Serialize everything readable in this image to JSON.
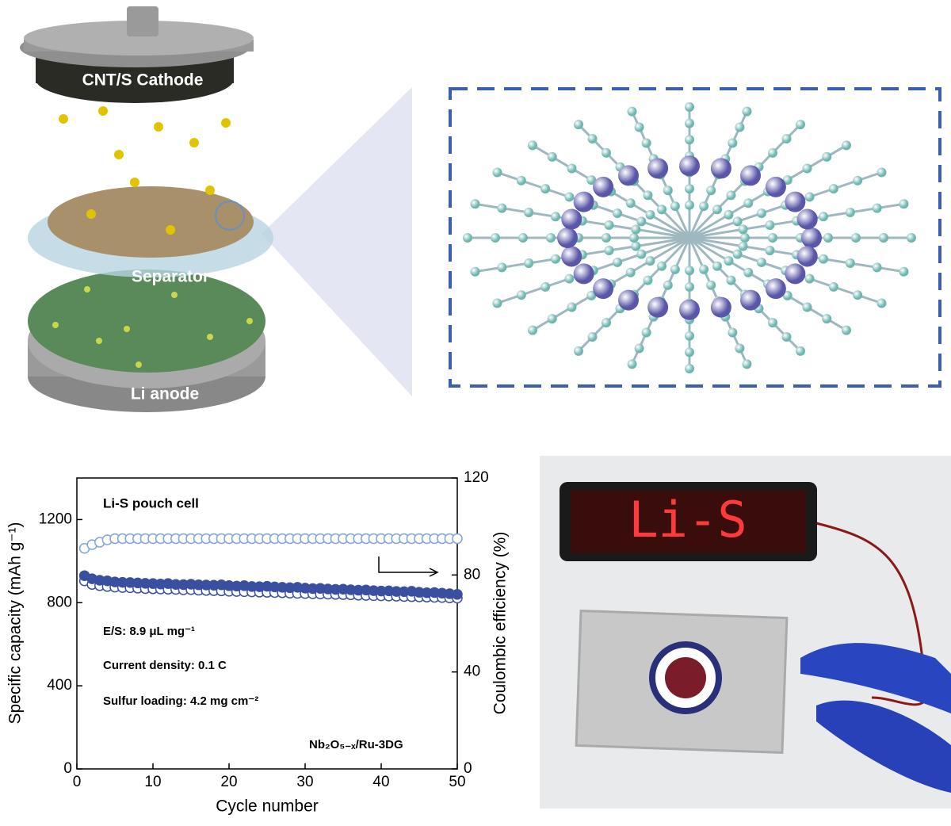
{
  "schematic": {
    "cathode": "CNT/S Cathode",
    "separator": "Separator",
    "anode": "Li anode"
  },
  "photo": {
    "display": "Li-S"
  },
  "chart_data": {
    "type": "scatter",
    "annotations": [
      "Li-S pouch cell",
      "E/S: 8.9 μL mg⁻¹",
      "Current density: 0.1 C",
      "Sulfur loading: 4.2 mg cm⁻²",
      "Nb₂O₅₋ₓ/Ru-3DG"
    ],
    "x_label": "Cycle number",
    "y_label": "Specific capacity (mAh g⁻¹)",
    "y2_label": "Coulombic efficiency (%)",
    "xlim": [
      0,
      50
    ],
    "xticks": [
      0,
      10,
      20,
      30,
      40,
      50
    ],
    "ylim": [
      0,
      1400
    ],
    "yticks": [
      0,
      400,
      800,
      1200
    ],
    "y2lim": [
      0,
      120
    ],
    "y2ticks": [
      0,
      40,
      80,
      120
    ],
    "x": [
      1,
      2,
      3,
      4,
      5,
      6,
      7,
      8,
      9,
      10,
      11,
      12,
      13,
      14,
      15,
      16,
      17,
      18,
      19,
      20,
      21,
      22,
      23,
      24,
      25,
      26,
      27,
      28,
      29,
      30,
      31,
      32,
      33,
      34,
      35,
      36,
      37,
      38,
      39,
      40,
      41,
      42,
      43,
      44,
      45,
      46,
      47,
      48,
      49,
      50
    ],
    "series": [
      {
        "color": "#3a4fa0",
        "filled": false,
        "values": [
          905,
          888,
          882,
          878,
          875,
          873,
          872,
          870,
          868,
          867,
          866,
          865,
          864,
          862,
          863,
          860,
          859,
          858,
          857,
          855,
          854,
          853,
          852,
          851,
          850,
          849,
          848,
          846,
          845,
          844,
          843,
          842,
          841,
          840,
          839,
          838,
          836,
          835,
          834,
          833,
          832,
          831,
          830,
          829,
          828,
          827,
          826,
          825,
          823,
          822
        ]
      },
      {
        "color": "#3a4fa0",
        "filled": true,
        "values": [
          930,
          915,
          908,
          905,
          900,
          898,
          897,
          895,
          893,
          892,
          890,
          892,
          888,
          887,
          889,
          886,
          885,
          884,
          886,
          882,
          880,
          882,
          878,
          877,
          879,
          876,
          874,
          872,
          874,
          870,
          868,
          869,
          866,
          864,
          865,
          862,
          860,
          861,
          858,
          856,
          857,
          854,
          853,
          855,
          850,
          848,
          849,
          846,
          843,
          840
        ]
      },
      {
        "color": "#7fa6d6",
        "filled": false,
        "axis": "y2",
        "values": [
          91,
          92.5,
          93.5,
          94.5,
          95,
          95,
          95,
          95,
          95,
          95,
          95,
          95,
          95,
          95,
          95,
          95,
          95,
          95,
          95,
          95,
          95,
          95,
          95,
          95,
          95,
          95,
          95,
          95,
          95,
          95,
          95,
          95,
          95,
          95,
          95,
          95,
          95,
          95,
          95,
          95,
          95,
          95,
          95,
          95,
          95,
          95,
          95,
          95,
          95,
          95
        ]
      }
    ]
  }
}
